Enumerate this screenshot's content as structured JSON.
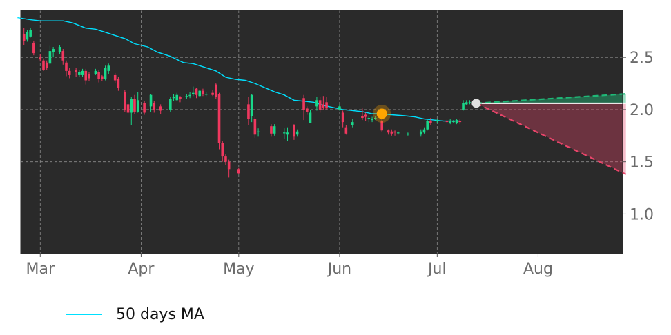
{
  "chart_data": {
    "type": "candlestick",
    "x_tick_labels": [
      "Mar",
      "Apr",
      "May",
      "Jun",
      "Jul",
      "Aug"
    ],
    "y_tick_labels": [
      "1.0",
      "1.5",
      "2.0",
      "2.5"
    ],
    "y_ticks": [
      1.0,
      1.5,
      2.0,
      2.5
    ],
    "ylim": [
      0.62,
      2.95
    ],
    "x_range_days": [
      -6,
      179
    ],
    "month_tick_days": [
      0,
      31,
      61,
      92,
      122,
      153
    ],
    "grid": true,
    "legend_position": "bottom-left",
    "legend": [
      {
        "label": "50 days MA",
        "color": "#00e0ff"
      }
    ],
    "colors": {
      "up": "#19d88a",
      "down": "#f0385f",
      "ma": "#00e0ff",
      "background": "#2a2a2a",
      "grid": "#8a8a8a",
      "signal": "#ffa500",
      "forecast_up": "#1fb877",
      "forecast_down": "#e8456a"
    },
    "candles": [
      [
        -5,
        2.72,
        2.66,
        2.78,
        2.62
      ],
      [
        -4,
        2.67,
        2.74,
        2.76,
        2.65
      ],
      [
        -3,
        2.7,
        2.76,
        2.78,
        2.69
      ],
      [
        -2,
        2.64,
        2.54,
        2.66,
        2.52
      ],
      [
        0,
        2.5,
        2.48,
        2.53,
        2.46
      ],
      [
        1,
        2.47,
        2.38,
        2.49,
        2.37
      ],
      [
        2,
        2.45,
        2.4,
        2.47,
        2.38
      ],
      [
        3,
        2.44,
        2.56,
        2.61,
        2.43
      ],
      [
        4,
        2.55,
        2.58,
        2.6,
        2.5
      ],
      [
        6,
        2.55,
        2.6,
        2.62,
        2.53
      ],
      [
        7,
        2.56,
        2.47,
        2.58,
        2.43
      ],
      [
        8,
        2.45,
        2.37,
        2.47,
        2.32
      ],
      [
        9,
        2.37,
        2.33,
        2.4,
        2.3
      ],
      [
        11,
        2.38,
        2.36,
        2.4,
        2.31
      ],
      [
        12,
        2.33,
        2.36,
        2.38,
        2.31
      ],
      [
        13,
        2.33,
        2.37,
        2.39,
        2.31
      ],
      [
        14,
        2.37,
        2.28,
        2.39,
        2.24
      ],
      [
        15,
        2.34,
        2.3,
        2.36,
        2.27
      ],
      [
        17,
        2.34,
        2.37,
        2.39,
        2.33
      ],
      [
        18,
        2.36,
        2.29,
        2.38,
        2.26
      ],
      [
        19,
        2.32,
        2.29,
        2.33,
        2.27
      ],
      [
        20,
        2.29,
        2.4,
        2.42,
        2.28
      ],
      [
        21,
        2.37,
        2.42,
        2.44,
        2.34
      ],
      [
        23,
        2.33,
        2.28,
        2.35,
        2.25
      ],
      [
        24,
        2.29,
        2.21,
        2.31,
        2.18
      ],
      [
        26,
        2.17,
        2.0,
        2.19,
        1.98
      ],
      [
        27,
        2.05,
        1.97,
        2.07,
        1.95
      ],
      [
        28,
        1.97,
        2.1,
        2.12,
        1.85
      ],
      [
        29,
        2.1,
        1.98,
        2.14,
        1.96
      ],
      [
        30,
        1.98,
        2.09,
        2.17,
        1.97
      ],
      [
        32,
        2.06,
        1.97,
        2.08,
        1.95
      ],
      [
        34,
        2.03,
        2.14,
        2.15,
        1.98
      ],
      [
        35,
        2.06,
        2.0,
        2.08,
        1.97
      ],
      [
        37,
        2.03,
        1.99,
        2.05,
        1.96
      ],
      [
        40,
        2.0,
        2.1,
        2.12,
        1.98
      ],
      [
        41,
        2.11,
        2.12,
        2.15,
        2.08
      ],
      [
        42,
        2.09,
        2.14,
        2.16,
        2.08
      ],
      [
        43,
        2.12,
        2.1,
        2.13,
        2.07
      ],
      [
        45,
        2.12,
        2.13,
        2.15,
        2.1
      ],
      [
        46,
        2.13,
        2.14,
        2.17,
        2.11
      ],
      [
        47,
        2.15,
        2.16,
        2.22,
        2.13
      ],
      [
        48,
        2.2,
        2.14,
        2.21,
        2.11
      ],
      [
        49,
        2.13,
        2.18,
        2.19,
        2.12
      ],
      [
        50,
        2.18,
        2.15,
        2.2,
        2.13
      ],
      [
        51,
        2.15,
        2.15,
        2.17,
        2.13
      ],
      [
        53,
        2.16,
        2.14,
        2.19,
        2.13
      ],
      [
        54,
        2.24,
        2.12,
        2.25,
        2.1
      ],
      [
        55,
        2.15,
        1.68,
        2.16,
        1.62
      ],
      [
        56,
        1.68,
        1.55,
        1.7,
        1.5
      ],
      [
        57,
        1.55,
        1.5,
        1.57,
        1.47
      ],
      [
        58,
        1.5,
        1.43,
        1.52,
        1.35
      ],
      [
        61,
        1.43,
        1.39,
        1.44,
        1.38
      ],
      [
        64,
        2.05,
        1.91,
        2.12,
        1.85
      ],
      [
        65,
        1.94,
        2.14,
        2.15,
        1.88
      ],
      [
        66,
        1.91,
        1.76,
        1.93,
        1.73
      ],
      [
        67,
        1.79,
        1.79,
        1.82,
        1.74
      ],
      [
        71,
        1.84,
        1.77,
        1.86,
        1.74
      ],
      [
        72,
        1.77,
        1.84,
        1.86,
        1.75
      ],
      [
        75,
        1.78,
        1.78,
        1.82,
        1.72
      ],
      [
        76,
        1.76,
        1.78,
        1.83,
        1.7
      ],
      [
        78,
        1.85,
        1.74,
        1.86,
        1.71
      ],
      [
        79,
        1.76,
        1.79,
        1.81,
        1.74
      ],
      [
        81,
        2.11,
        2.0,
        2.14,
        1.9
      ],
      [
        82,
        2.01,
        1.98,
        2.03,
        1.95
      ],
      [
        83,
        1.87,
        1.97,
        2.0,
        1.87
      ],
      [
        85,
        2.03,
        2.09,
        2.12,
        1.99
      ],
      [
        86,
        2.09,
        2.0,
        2.12,
        1.97
      ],
      [
        87,
        2.05,
        2.02,
        2.13,
        2.0
      ],
      [
        88,
        2.07,
        2.01,
        2.12,
        2.0
      ],
      [
        92,
        2.0,
        2.03,
        2.05,
        1.99
      ],
      [
        93,
        1.97,
        1.88,
        1.99,
        1.83
      ],
      [
        94,
        1.83,
        1.77,
        1.85,
        1.76
      ],
      [
        96,
        1.85,
        1.88,
        1.91,
        1.83
      ],
      [
        99,
        1.94,
        1.92,
        2.01,
        1.9
      ],
      [
        100,
        1.95,
        1.93,
        1.97,
        1.89
      ],
      [
        101,
        1.91,
        1.92,
        1.94,
        1.88
      ],
      [
        102,
        1.9,
        1.91,
        1.93,
        1.88
      ],
      [
        103,
        1.92,
        1.92,
        1.94,
        1.9
      ],
      [
        105,
        1.89,
        1.8,
        1.91,
        1.79
      ],
      [
        107,
        1.8,
        1.78,
        1.81,
        1.76
      ],
      [
        108,
        1.79,
        1.77,
        1.81,
        1.75
      ],
      [
        109,
        1.79,
        1.78,
        1.8,
        1.75
      ],
      [
        110,
        1.78,
        1.78,
        1.79,
        1.76
      ],
      [
        113,
        1.76,
        1.77,
        1.78,
        1.75
      ],
      [
        117,
        1.76,
        1.79,
        1.81,
        1.74
      ],
      [
        118,
        1.78,
        1.81,
        1.83,
        1.77
      ],
      [
        119,
        1.81,
        1.89,
        1.9,
        1.8
      ],
      [
        120,
        1.89,
        1.87,
        1.92,
        1.85
      ],
      [
        122,
        1.89,
        1.9,
        1.91,
        1.87
      ],
      [
        125,
        1.89,
        1.88,
        1.91,
        1.87
      ],
      [
        126,
        1.87,
        1.89,
        1.91,
        1.86
      ],
      [
        127,
        1.88,
        1.89,
        1.9,
        1.87
      ],
      [
        128,
        1.87,
        1.9,
        1.91,
        1.86
      ],
      [
        129,
        1.89,
        1.88,
        1.91,
        1.86
      ],
      [
        130,
        2.0,
        2.06,
        2.09,
        1.99
      ],
      [
        131,
        2.05,
        2.07,
        2.09,
        2.04
      ],
      [
        132,
        2.06,
        2.07,
        2.09,
        2.05
      ]
    ],
    "moving_average_50": [
      [
        -7,
        2.88
      ],
      [
        -3,
        2.86
      ],
      [
        0,
        2.85
      ],
      [
        3,
        2.85
      ],
      [
        5,
        2.85
      ],
      [
        7,
        2.85
      ],
      [
        10,
        2.83
      ],
      [
        14,
        2.78
      ],
      [
        17,
        2.77
      ],
      [
        20,
        2.74
      ],
      [
        23,
        2.71
      ],
      [
        26,
        2.68
      ],
      [
        29,
        2.63
      ],
      [
        33,
        2.6
      ],
      [
        36,
        2.55
      ],
      [
        40,
        2.51
      ],
      [
        44,
        2.45
      ],
      [
        47,
        2.44
      ],
      [
        51,
        2.4
      ],
      [
        54,
        2.37
      ],
      [
        57,
        2.31
      ],
      [
        60,
        2.29
      ],
      [
        63,
        2.28
      ],
      [
        66,
        2.25
      ],
      [
        69,
        2.21
      ],
      [
        72,
        2.17
      ],
      [
        75,
        2.14
      ],
      [
        78,
        2.09
      ],
      [
        81,
        2.08
      ],
      [
        84,
        2.07
      ],
      [
        87,
        2.04
      ],
      [
        90,
        2.02
      ],
      [
        93,
        2.0
      ],
      [
        96,
        1.99
      ],
      [
        99,
        1.98
      ],
      [
        102,
        1.96
      ],
      [
        105,
        1.96
      ],
      [
        108,
        1.95
      ],
      [
        112,
        1.94
      ],
      [
        115,
        1.93
      ],
      [
        118,
        1.91
      ],
      [
        121,
        1.9
      ],
      [
        124,
        1.89
      ],
      [
        127,
        1.89
      ],
      [
        129,
        1.89
      ]
    ],
    "signal_marker": {
      "day": 105,
      "value": 1.96
    },
    "forecast_start": {
      "day": 134,
      "value": 2.06
    },
    "forecast_end_day": 180,
    "forecast_up_end": 2.15,
    "forecast_down_end": 1.38
  }
}
